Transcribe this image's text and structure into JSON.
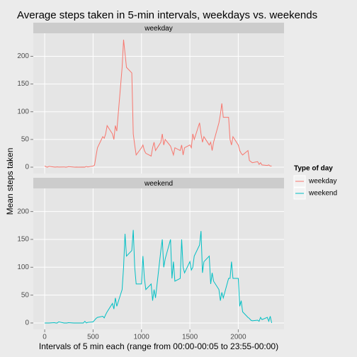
{
  "chart_data": {
    "type": "line",
    "title": "Average steps taken in 5-min intervals, weekdays vs. weekends",
    "x_label": "Intervals of 5 min each (range from 00:00-00:05 to 23:55-00:00)",
    "y_label": "Mean steps taken",
    "legend_title": "Type of day",
    "x": [
      0,
      15,
      30,
      45,
      100,
      115,
      130,
      145,
      200,
      215,
      230,
      245,
      300,
      315,
      330,
      345,
      400,
      415,
      430,
      445,
      500,
      515,
      530,
      545,
      600,
      615,
      630,
      645,
      700,
      715,
      730,
      745,
      800,
      815,
      830,
      845,
      900,
      915,
      930,
      945,
      1000,
      1015,
      1030,
      1045,
      1100,
      1115,
      1130,
      1145,
      1200,
      1215,
      1230,
      1245,
      1300,
      1315,
      1330,
      1345,
      1400,
      1415,
      1430,
      1445,
      1500,
      1515,
      1530,
      1545,
      1600,
      1615,
      1630,
      1645,
      1700,
      1715,
      1730,
      1745,
      1800,
      1815,
      1830,
      1845,
      1900,
      1915,
      1930,
      1945,
      2000,
      2015,
      2030,
      2045,
      2100,
      2115,
      2130,
      2145,
      2200,
      2215,
      2230,
      2245,
      2300,
      2315,
      2330,
      2345
    ],
    "series": [
      {
        "name": "weekday",
        "color": "#F8766D",
        "values": [
          2.3,
          0.5,
          0.1,
          1.5,
          0.2,
          0.1,
          0.5,
          0.1,
          0.4,
          0,
          0.1,
          1,
          0.1,
          0,
          0.2,
          0,
          0.1,
          0,
          1.3,
          0.4,
          2,
          3.8,
          20,
          35,
          55,
          52,
          60,
          75,
          60,
          50,
          75,
          65,
          180,
          230,
          205,
          180,
          170,
          60,
          40,
          22,
          35,
          40,
          30,
          25,
          20,
          35,
          45,
          30,
          45,
          60,
          40,
          50,
          38,
          30,
          22,
          35,
          30,
          40,
          22,
          35,
          40,
          35,
          60,
          50,
          80,
          60,
          45,
          55,
          40,
          45,
          30,
          45,
          80,
          95,
          115,
          90,
          90,
          50,
          40,
          55,
          40,
          30,
          25,
          22,
          30,
          12,
          10,
          8,
          10,
          5,
          8,
          4,
          3,
          4,
          2,
          2
        ]
      },
      {
        "name": "weekend",
        "color": "#00BFC4",
        "values": [
          0,
          0,
          0,
          0,
          0.5,
          0,
          0,
          2,
          0,
          0,
          0,
          0.5,
          0,
          0,
          0,
          0,
          0,
          3,
          0,
          1,
          2,
          5,
          8,
          10,
          12,
          9,
          15,
          20,
          35,
          25,
          45,
          30,
          60,
          100,
          160,
          120,
          130,
          167,
          100,
          70,
          70,
          120,
          80,
          60,
          70,
          40,
          60,
          45,
          130,
          150,
          100,
          115,
          150,
          80,
          110,
          75,
          80,
          150,
          100,
          90,
          110,
          95,
          100,
          120,
          140,
          165,
          90,
          110,
          120,
          70,
          90,
          75,
          60,
          40,
          55,
          45,
          80,
          80,
          110,
          80,
          80,
          30,
          40,
          20,
          10,
          8,
          5,
          4,
          5,
          3,
          10,
          6,
          10,
          3,
          12,
          0
        ]
      }
    ],
    "xlim": [
      -117.75,
      2472.75
    ],
    "xticks": [
      0,
      500,
      1000,
      1500,
      2000
    ],
    "ylim": [
      -11.5,
      241.5
    ],
    "yticks": [
      0,
      50,
      100,
      150,
      200
    ],
    "grid": true
  }
}
